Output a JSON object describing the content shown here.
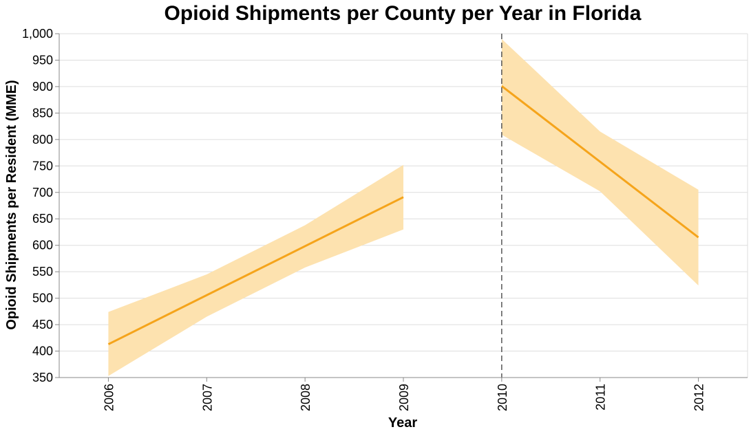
{
  "chart_data": {
    "type": "line",
    "title": "Opioid Shipments per County per Year in Florida",
    "xlabel": "Year",
    "ylabel": "Opioid Shipments per Resident (MME)",
    "x_ticks": [
      "2006",
      "2007",
      "2008",
      "2009",
      "2010",
      "2011",
      "2012"
    ],
    "y_ticks": [
      "350",
      "400",
      "450",
      "500",
      "550",
      "600",
      "650",
      "700",
      "750",
      "800",
      "850",
      "900",
      "950",
      "1,000"
    ],
    "xlim": [
      2005.5,
      2012.5
    ],
    "ylim": [
      350,
      1000
    ],
    "grid": "horizontal",
    "colors": {
      "line": "#f5a41b",
      "band": "#fde2af",
      "rule": "#555555"
    },
    "series": [
      {
        "segment": "pre-2010",
        "x": [
          2006,
          2009
        ],
        "y": [
          413,
          691
        ],
        "band_x": [
          2006,
          2007,
          2008,
          2009
        ],
        "band_lower": [
          353,
          465,
          558,
          630
        ],
        "band_upper": [
          474,
          545,
          638,
          752
        ]
      },
      {
        "segment": "post-2010",
        "x": [
          2010,
          2012
        ],
        "y": [
          901,
          615
        ],
        "band_x": [
          2010,
          2011,
          2012
        ],
        "band_lower": [
          809,
          702,
          524
        ],
        "band_upper": [
          990,
          815,
          705
        ]
      }
    ],
    "reference_line": {
      "x": 2010,
      "style": "dashed"
    }
  }
}
